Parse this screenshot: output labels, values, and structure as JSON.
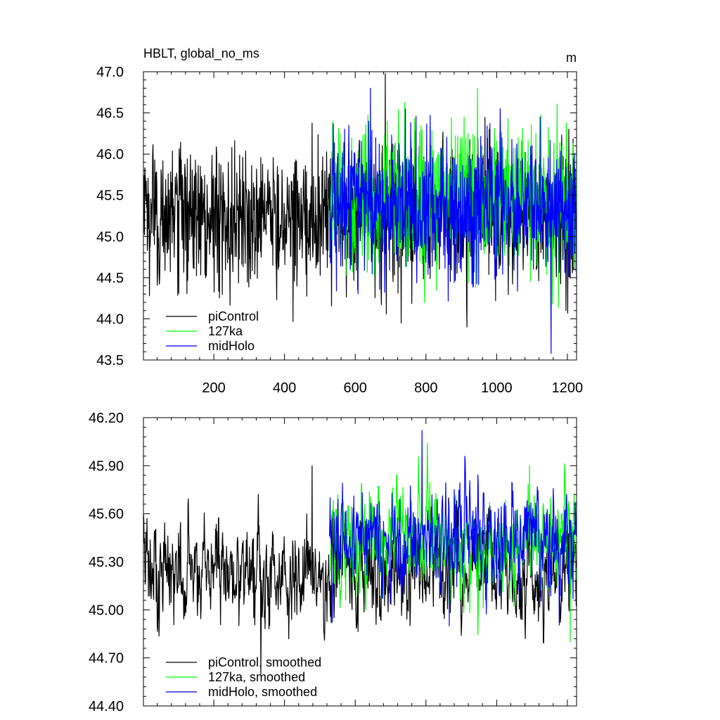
{
  "chart_data": [
    {
      "type": "line",
      "title": "HBLT, global_no_ms",
      "units": "m",
      "xlim": [
        1,
        1226
      ],
      "ylim": [
        43.5,
        47.0
      ],
      "x_ticks": [
        200,
        400,
        600,
        800,
        1000,
        1200
      ],
      "y_ticks": [
        "43.5",
        "44.0",
        "44.5",
        "45.0",
        "45.5",
        "46.0",
        "46.5",
        "47.0"
      ],
      "legend_position": "bottom-left",
      "grid": false,
      "series": [
        {
          "name": "piControl",
          "color": "#000000",
          "x_start": 1,
          "x_end": 1226,
          "mean": 45.25,
          "values_sampled_every_100": [
            45.3,
            45.2,
            44.9,
            45.1,
            45.4,
            45.2,
            45.3,
            45.1,
            45.2,
            45.0,
            45.3,
            45.2,
            45.1
          ],
          "max": 46.98,
          "min": 43.9
        },
        {
          "name": "127ka",
          "color": "#00ff00",
          "x_start": 527,
          "x_end": 1226,
          "mean": 45.45,
          "values_sampled_every_100": [
            45.5,
            45.6,
            45.3,
            45.4,
            45.6,
            45.5,
            45.4,
            45.5
          ],
          "max": 46.8,
          "min": 44.2
        },
        {
          "name": "midHolo",
          "color": "#0000ff",
          "x_start": 527,
          "x_end": 1226,
          "mean": 45.4,
          "values_sampled_every_100": [
            45.4,
            45.3,
            45.6,
            45.4,
            45.2,
            45.5,
            45.4,
            45.3
          ],
          "max": 46.8,
          "min": 43.58
        }
      ]
    },
    {
      "type": "line",
      "title": "",
      "xlim": [
        1,
        1226
      ],
      "ylim": [
        44.4,
        46.2
      ],
      "x_ticks": [
        200,
        400,
        600,
        800,
        1000,
        1200
      ],
      "y_ticks": [
        "44.40",
        "44.70",
        "45.00",
        "45.30",
        "45.60",
        "45.90",
        "46.20"
      ],
      "legend_position": "bottom-left",
      "grid": false,
      "series": [
        {
          "name": "piControl, smoothed",
          "color": "#000000",
          "x_start": 1,
          "x_end": 1226,
          "mean": 45.25,
          "max": 45.9,
          "min": 44.6
        },
        {
          "name": "127ka, smoothed",
          "color": "#00ff00",
          "x_start": 527,
          "x_end": 1226,
          "mean": 45.45,
          "max": 45.9,
          "min": 44.8
        },
        {
          "name": "midHolo, smoothed",
          "color": "#0000ff",
          "x_start": 527,
          "x_end": 1226,
          "mean": 45.45,
          "max": 46.12,
          "min": 44.9
        }
      ]
    }
  ]
}
